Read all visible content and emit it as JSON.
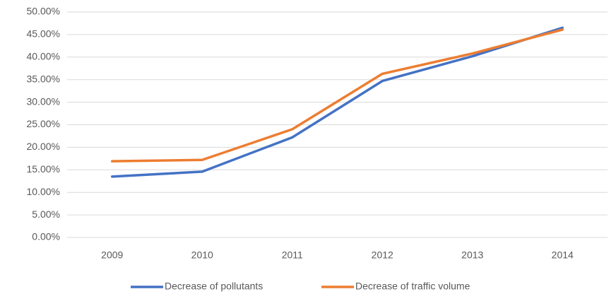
{
  "chart_data": {
    "type": "line",
    "categories": [
      "2009",
      "2010",
      "2011",
      "2012",
      "2013",
      "2014"
    ],
    "series": [
      {
        "name": "Decrease of pollutants",
        "color": "#4472c4",
        "values": [
          13.5,
          14.6,
          22.2,
          34.7,
          40.2,
          46.5
        ]
      },
      {
        "name": "Decrease of traffic volume",
        "color": "#ed7d31",
        "values": [
          16.9,
          17.2,
          24.0,
          36.3,
          40.8,
          46.1
        ]
      }
    ],
    "ylim": [
      0,
      50
    ],
    "yticks": [
      {
        "value": 0,
        "label": "0.00%"
      },
      {
        "value": 5,
        "label": "5.00%"
      },
      {
        "value": 10,
        "label": "10.00%"
      },
      {
        "value": 15,
        "label": "15.00%"
      },
      {
        "value": 20,
        "label": "20.00%"
      },
      {
        "value": 25,
        "label": "25.00%"
      },
      {
        "value": 30,
        "label": "30.00%"
      },
      {
        "value": 35,
        "label": "35.00%"
      },
      {
        "value": 40,
        "label": "40.00%"
      },
      {
        "value": 45,
        "label": "45.00%"
      },
      {
        "value": 50,
        "label": "50.00%"
      }
    ],
    "grid": true,
    "legend": "bottom"
  }
}
